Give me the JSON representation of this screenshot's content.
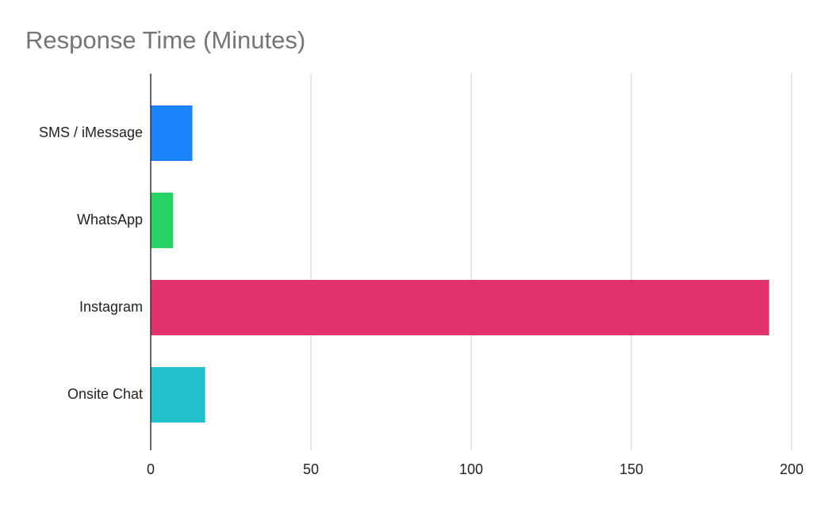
{
  "chart_data": {
    "type": "bar",
    "orientation": "horizontal",
    "title": "Response Time (Minutes)",
    "categories": [
      "SMS / iMessage",
      "WhatsApp",
      "Instagram",
      "Onsite Chat"
    ],
    "values": [
      13,
      7,
      193,
      17
    ],
    "colors": [
      "#1a82fb",
      "#24d363",
      "#e0336b",
      "#22bfcc"
    ],
    "xlim": [
      0,
      200
    ],
    "xticks": [
      0,
      50,
      100,
      150,
      200
    ],
    "grid": true
  }
}
